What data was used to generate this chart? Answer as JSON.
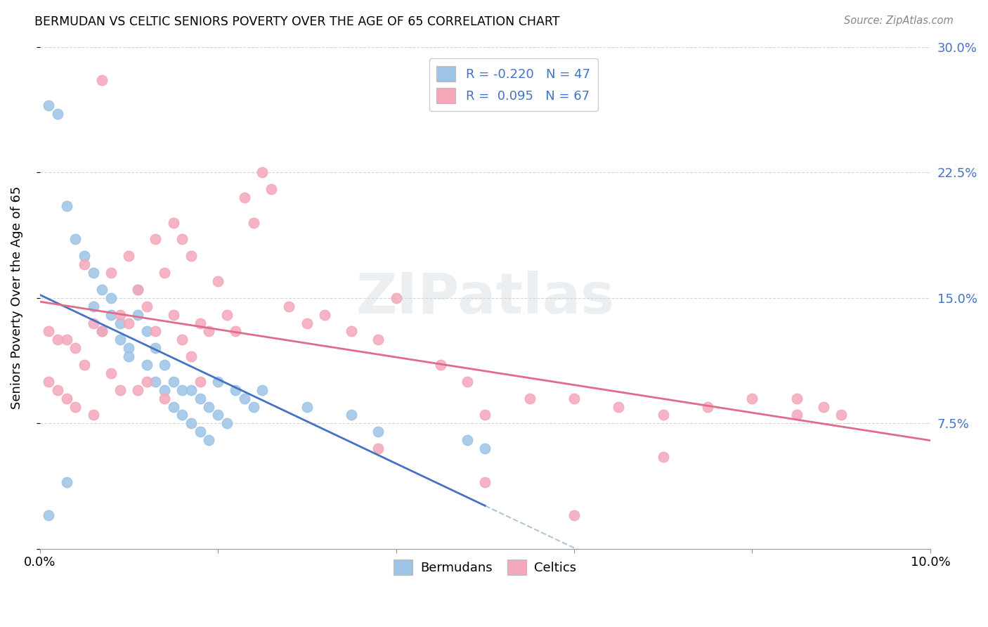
{
  "title": "BERMUDAN VS CELTIC SENIORS POVERTY OVER THE AGE OF 65 CORRELATION CHART",
  "source": "Source: ZipAtlas.com",
  "ylabel": "Seniors Poverty Over the Age of 65",
  "xlim": [
    0.0,
    0.1
  ],
  "ylim": [
    0.0,
    0.3
  ],
  "xticks": [
    0.0,
    0.02,
    0.04,
    0.06,
    0.08,
    0.1
  ],
  "xticklabels": [
    "0.0%",
    "",
    "",
    "",
    "",
    "10.0%"
  ],
  "yticks": [
    0.0,
    0.075,
    0.15,
    0.225,
    0.3
  ],
  "yticklabels": [
    "",
    "7.5%",
    "15.0%",
    "22.5%",
    "30.0%"
  ],
  "right_ytick_color": "#4472c4",
  "watermark": "ZIPatlas",
  "legend_R_bermudans": "-0.220",
  "legend_N_bermudans": "47",
  "legend_R_celtics": "0.095",
  "legend_N_celtics": "67",
  "bermudans_color": "#9dc3e6",
  "celtics_color": "#f4a7b9",
  "bermudans_line_color": "#4472c4",
  "celtics_line_color": "#e06c8a",
  "dashed_line_color": "#aec6d8",
  "grid_color": "#cccccc",
  "background_color": "#ffffff",
  "bermudans_x": [
    0.001,
    0.002,
    0.003,
    0.004,
    0.005,
    0.006,
    0.006,
    0.007,
    0.007,
    0.008,
    0.008,
    0.009,
    0.009,
    0.01,
    0.01,
    0.011,
    0.011,
    0.012,
    0.012,
    0.013,
    0.013,
    0.014,
    0.014,
    0.015,
    0.015,
    0.016,
    0.016,
    0.017,
    0.017,
    0.018,
    0.018,
    0.019,
    0.019,
    0.02,
    0.02,
    0.021,
    0.022,
    0.023,
    0.024,
    0.025,
    0.03,
    0.035,
    0.038,
    0.048,
    0.05,
    0.003,
    0.001
  ],
  "bermudans_y": [
    0.265,
    0.26,
    0.205,
    0.185,
    0.175,
    0.165,
    0.145,
    0.155,
    0.13,
    0.15,
    0.14,
    0.135,
    0.125,
    0.12,
    0.115,
    0.155,
    0.14,
    0.13,
    0.11,
    0.12,
    0.1,
    0.11,
    0.095,
    0.1,
    0.085,
    0.095,
    0.08,
    0.095,
    0.075,
    0.09,
    0.07,
    0.085,
    0.065,
    0.1,
    0.08,
    0.075,
    0.095,
    0.09,
    0.085,
    0.095,
    0.085,
    0.08,
    0.07,
    0.065,
    0.06,
    0.04,
    0.02
  ],
  "celtics_x": [
    0.001,
    0.001,
    0.002,
    0.002,
    0.003,
    0.003,
    0.004,
    0.004,
    0.005,
    0.005,
    0.006,
    0.006,
    0.007,
    0.007,
    0.008,
    0.008,
    0.009,
    0.009,
    0.01,
    0.01,
    0.011,
    0.011,
    0.012,
    0.012,
    0.013,
    0.013,
    0.014,
    0.014,
    0.015,
    0.015,
    0.016,
    0.016,
    0.017,
    0.017,
    0.018,
    0.018,
    0.019,
    0.02,
    0.021,
    0.022,
    0.023,
    0.024,
    0.025,
    0.026,
    0.028,
    0.03,
    0.032,
    0.035,
    0.038,
    0.04,
    0.045,
    0.048,
    0.05,
    0.055,
    0.06,
    0.065,
    0.07,
    0.075,
    0.08,
    0.085,
    0.088,
    0.09,
    0.038,
    0.05,
    0.06,
    0.07,
    0.085
  ],
  "celtics_y": [
    0.13,
    0.1,
    0.125,
    0.095,
    0.125,
    0.09,
    0.12,
    0.085,
    0.17,
    0.11,
    0.135,
    0.08,
    0.28,
    0.13,
    0.165,
    0.105,
    0.14,
    0.095,
    0.175,
    0.135,
    0.155,
    0.095,
    0.145,
    0.1,
    0.185,
    0.13,
    0.165,
    0.09,
    0.195,
    0.14,
    0.185,
    0.125,
    0.175,
    0.115,
    0.135,
    0.1,
    0.13,
    0.16,
    0.14,
    0.13,
    0.21,
    0.195,
    0.225,
    0.215,
    0.145,
    0.135,
    0.14,
    0.13,
    0.125,
    0.15,
    0.11,
    0.1,
    0.08,
    0.09,
    0.09,
    0.085,
    0.08,
    0.085,
    0.09,
    0.09,
    0.085,
    0.08,
    0.06,
    0.04,
    0.02,
    0.055,
    0.08
  ]
}
